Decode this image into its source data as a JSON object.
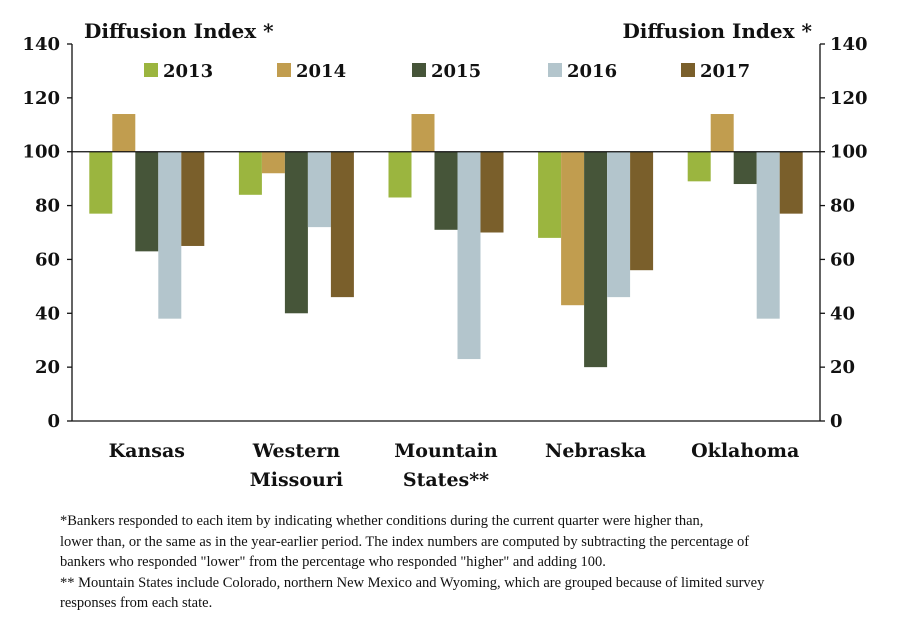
{
  "chart_data": {
    "type": "bar",
    "ylabel_left": "Diffusion Index *",
    "ylabel_right": "Diffusion Index *",
    "ylim": [
      0,
      140
    ],
    "yticks": [
      0,
      20,
      40,
      60,
      80,
      100,
      120,
      140
    ],
    "baseline": 100,
    "categories": [
      "Kansas",
      "Western\nMissouri",
      "Mountain\nStates**",
      "Nebraska",
      "Oklahoma"
    ],
    "series": [
      {
        "name": "2013",
        "color": "#9bb53f",
        "values": [
          77,
          84,
          83,
          68,
          89
        ]
      },
      {
        "name": "2014",
        "color": "#c19d4f",
        "values": [
          114,
          92,
          114,
          43,
          114
        ]
      },
      {
        "name": "2015",
        "color": "#465539",
        "values": [
          63,
          40,
          71,
          20,
          88
        ]
      },
      {
        "name": "2016",
        "color": "#b3c5cc",
        "values": [
          38,
          72,
          23,
          46,
          38
        ]
      },
      {
        "name": "2017",
        "color": "#7a5f2b",
        "values": [
          65,
          46,
          70,
          56,
          77
        ]
      }
    ],
    "legend_position": "top",
    "grid": false
  },
  "footnote": {
    "line1": "*Bankers responded to each item by indicating whether conditions during the current quarter were higher than,\nlower than, or the same as in the year-earlier period.  The index numbers are computed by subtracting the percentage of\nbankers who responded \"lower\" from the percentage who responded \"higher\" and adding 100.",
    "line2": "** Mountain States include Colorado, northern New Mexico and Wyoming, which are grouped because of limited survey\nresponses from each state."
  }
}
